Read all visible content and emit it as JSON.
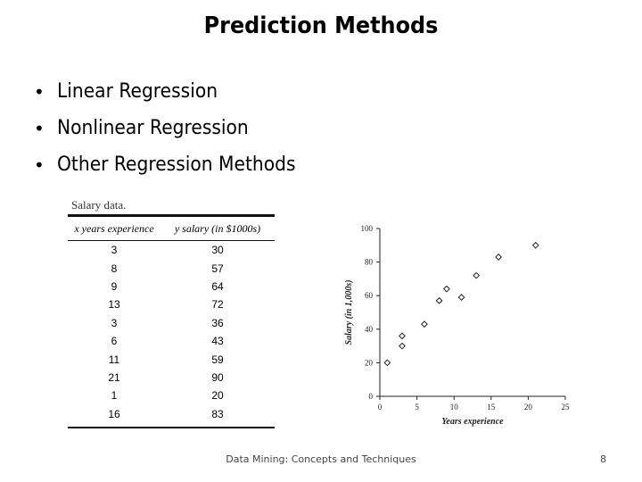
{
  "slide": {
    "title": "Prediction Methods",
    "bullets": [
      "Linear Regression",
      "Nonlinear Regression",
      "Other Regression Methods"
    ],
    "footer": "Data Mining: Concepts and Techniques",
    "page_number": "8"
  },
  "salary_table": {
    "caption": "Salary data.",
    "col_x_header": "x years experience",
    "col_y_header": "y salary (in $1000s)",
    "rows": [
      {
        "x": "3",
        "y": "30"
      },
      {
        "x": "8",
        "y": "57"
      },
      {
        "x": "9",
        "y": "64"
      },
      {
        "x": "13",
        "y": "72"
      },
      {
        "x": "3",
        "y": "36"
      },
      {
        "x": "6",
        "y": "43"
      },
      {
        "x": "11",
        "y": "59"
      },
      {
        "x": "21",
        "y": "90"
      },
      {
        "x": "1",
        "y": "20"
      },
      {
        "x": "16",
        "y": "83"
      }
    ]
  },
  "chart_data": {
    "type": "scatter",
    "title": "",
    "xlabel": "Years experience",
    "ylabel": "Salary (in 1,000s)",
    "xlim": [
      0,
      25
    ],
    "ylim": [
      0,
      100
    ],
    "xticks": [
      "0",
      "5",
      "10",
      "15",
      "20",
      "25"
    ],
    "yticks": [
      "0",
      "20",
      "40",
      "60",
      "80",
      "100"
    ],
    "grid": false,
    "marker": "diamond",
    "x": [
      3,
      8,
      9,
      13,
      3,
      6,
      11,
      21,
      1,
      16
    ],
    "y": [
      30,
      57,
      64,
      72,
      36,
      43,
      59,
      90,
      20,
      83
    ]
  }
}
